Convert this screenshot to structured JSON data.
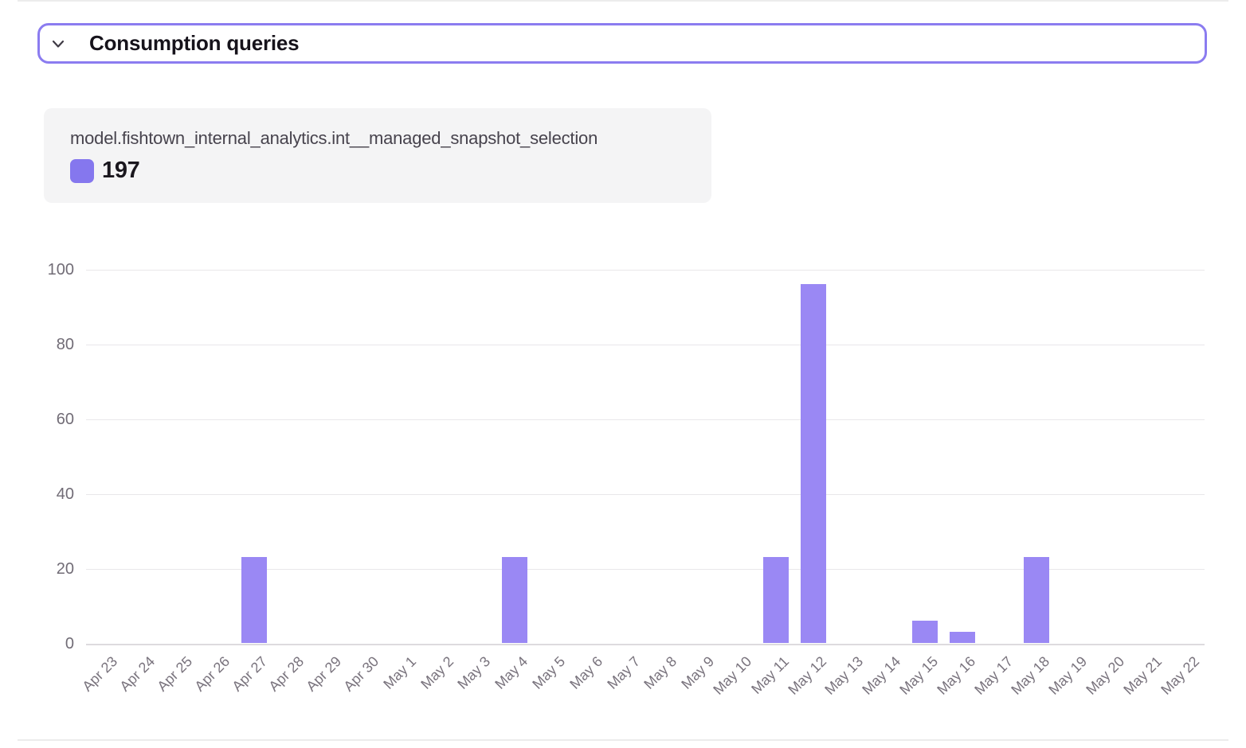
{
  "section": {
    "title": "Consumption queries",
    "chevron_icon": "chevron-down",
    "expanded": true
  },
  "legend": {
    "series_name": "model.fishtown_internal_analytics.int__managed_snapshot_selection",
    "total": "197"
  },
  "colors": {
    "accent": "#8b7cf0",
    "bar": "#9a88f4",
    "swatch": "#8577ee",
    "grid": "#e9e7ea",
    "axis_text": "#79737d",
    "card_bg": "#f4f4f5"
  },
  "chart_data": {
    "type": "bar",
    "title": "Consumption queries",
    "series_name": "model.fishtown_internal_analytics.int__managed_snapshot_selection",
    "series_total": 197,
    "categories": [
      "Apr 23",
      "Apr 24",
      "Apr 25",
      "Apr 26",
      "Apr 27",
      "Apr 28",
      "Apr 29",
      "Apr 30",
      "May 1",
      "May 2",
      "May 3",
      "May 4",
      "May 5",
      "May 6",
      "May 7",
      "May 8",
      "May 9",
      "May 10",
      "May 11",
      "May 12",
      "May 13",
      "May 14",
      "May 15",
      "May 16",
      "May 17",
      "May 18",
      "May 19",
      "May 20",
      "May 21",
      "May 22"
    ],
    "values": [
      0,
      0,
      0,
      0,
      23,
      0,
      0,
      0,
      0,
      0,
      0,
      23,
      0,
      0,
      0,
      0,
      0,
      0,
      23,
      96,
      0,
      0,
      6,
      3,
      0,
      23,
      0,
      0,
      0,
      0
    ],
    "xlabel": "",
    "ylabel": "",
    "ylim": [
      0,
      100
    ],
    "y_ticks": [
      0,
      20,
      40,
      60,
      80,
      100
    ],
    "grid": true,
    "x_label_rotation": -45,
    "legend_position": "top-left"
  }
}
